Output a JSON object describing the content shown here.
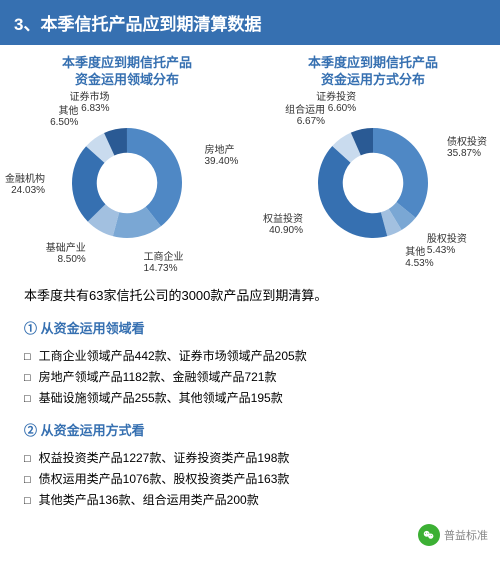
{
  "header": "3、本季信托产品应到期清算数据",
  "chart_left": {
    "title_line1": "本季度应到期信托产品",
    "title_line2": "资金运用领域分布",
    "type": "donut",
    "inner_ratio": 0.55,
    "background_color": "#ffffff",
    "label_fontsize": 10,
    "segments": [
      {
        "name": "房地产",
        "pct": 39.4,
        "color": "#4f88c5",
        "label": "房地产",
        "pct_label": "39.40%"
      },
      {
        "name": "工商企业",
        "pct": 14.73,
        "color": "#7aa7d4",
        "label": "工商企业",
        "pct_label": "14.73%"
      },
      {
        "name": "基础产业",
        "pct": 8.5,
        "color": "#a2c0e0",
        "label": "基础产业",
        "pct_label": "8.50%"
      },
      {
        "name": "金融机构",
        "pct": 24.03,
        "color": "#3670b1",
        "label": "金融机构",
        "pct_label": "24.03%"
      },
      {
        "name": "其他",
        "pct": 6.5,
        "color": "#c9dbee",
        "label": "其他",
        "pct_label": "6.50%"
      },
      {
        "name": "证券市场",
        "pct": 6.83,
        "color": "#2a5a94",
        "label": "证券市场",
        "pct_label": "6.83%"
      }
    ]
  },
  "chart_right": {
    "title_line1": "本季度应到期信托产品",
    "title_line2": "资金运用方式分布",
    "type": "donut",
    "inner_ratio": 0.55,
    "background_color": "#ffffff",
    "label_fontsize": 10,
    "segments": [
      {
        "name": "债权投资",
        "pct": 35.87,
        "color": "#4f88c5",
        "label": "债权投资",
        "pct_label": "35.87%"
      },
      {
        "name": "股权投资",
        "pct": 5.43,
        "color": "#7aa7d4",
        "label": "股权投资",
        "pct_label": "5.43%"
      },
      {
        "name": "其他",
        "pct": 4.53,
        "color": "#a2c0e0",
        "label": "其他",
        "pct_label": "4.53%"
      },
      {
        "name": "权益投资",
        "pct": 40.9,
        "color": "#3670b1",
        "label": "权益投资",
        "pct_label": "40.90%"
      },
      {
        "name": "组合运用",
        "pct": 6.67,
        "color": "#c9dbee",
        "label": "组合运用",
        "pct_label": "6.67%"
      },
      {
        "name": "证券投资",
        "pct": 6.6,
        "color": "#2a5a94",
        "label": "证券投资",
        "pct_label": "6.60%"
      }
    ]
  },
  "intro_text": "本季度共有63家信托公司的3000款产品应到期清算。",
  "section1": {
    "num": "①",
    "title": "从资金运用领域看",
    "bullets": [
      "工商企业领域产品442款、证券市场领域产品205款",
      "房地产领域产品1182款、金融领域产品721款",
      "基础设施领域产品255款、其他领域产品195款"
    ]
  },
  "section2": {
    "num": "②",
    "title": "从资金运用方式看",
    "bullets": [
      "权益投资类产品1227款、证券投资类产品198款",
      "债权运用类产品1076款、股权投资类产品163款",
      "其他类产品136款、组合运用类产品200款"
    ]
  },
  "brand_text": "普益标准"
}
